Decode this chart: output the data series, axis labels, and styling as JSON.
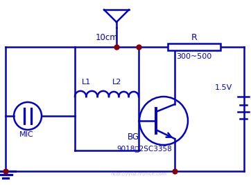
{
  "bg_color": "#ffffff",
  "line_color": "#0000cc",
  "dot_color": "#880000",
  "lw": 1.8,
  "labels": {
    "antenna_label": "10cm",
    "R_label": "R",
    "R_value": "300~500",
    "L1_label": "L1",
    "L2_label": "L2",
    "BG_label": "BG",
    "BG_value": "9018或2SC3358",
    "MIC_label": "MIC",
    "V_label": "1.5V"
  },
  "watermark": "http://yydz.myrice.com"
}
